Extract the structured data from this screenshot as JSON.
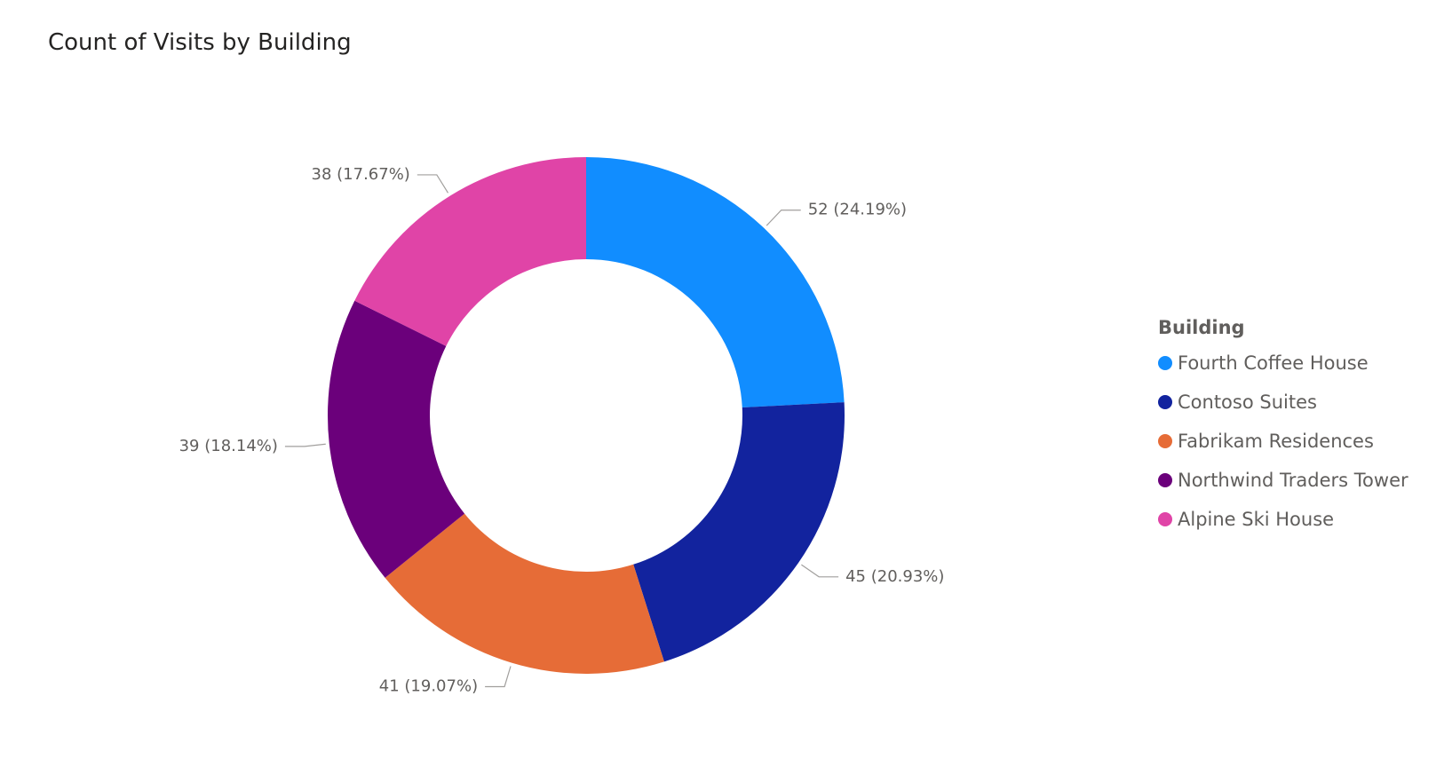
{
  "chart_data": {
    "type": "donut",
    "title": "Count of Visits by Building",
    "legend": {
      "title": "Building",
      "position": "right"
    },
    "categories": [
      "Fourth Coffee House",
      "Contoso Suites",
      "Fabrikam Residences",
      "Northwind Traders Tower",
      "Alpine Ski House"
    ],
    "values": [
      52,
      45,
      41,
      39,
      38
    ],
    "percentages": [
      "24.19%",
      "20.93%",
      "19.07%",
      "18.14%",
      "17.67%"
    ],
    "data_labels": [
      "52 (24.19%)",
      "45 (20.93%)",
      "41 (19.07%)",
      "39 (18.14%)",
      "38 (17.67%)"
    ],
    "colors": [
      "#118dff",
      "#12239e",
      "#e66c37",
      "#6b007b",
      "#e044a7"
    ]
  }
}
